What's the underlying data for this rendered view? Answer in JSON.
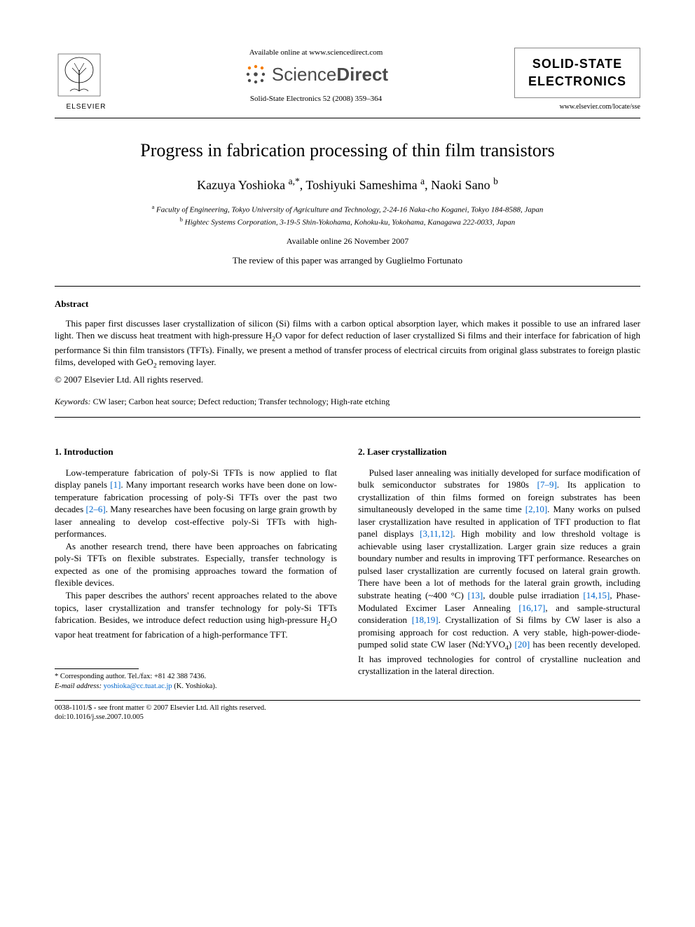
{
  "header": {
    "publisher_logo_text": "ELSEVIER",
    "available_text": "Available online at www.sciencedirect.com",
    "sd_logo_regular": "Science",
    "sd_logo_bold": "Direct",
    "citation": "Solid-State Electronics 52 (2008) 359–364",
    "journal_title_line1": "SOLID-STATE",
    "journal_title_line2": "ELECTRONICS",
    "journal_url": "www.elsevier.com/locate/sse"
  },
  "article": {
    "title": "Progress in fabrication processing of thin film transistors",
    "authors_html": "Kazuya Yoshioka <sup>a,*</sup>, Toshiyuki Sameshima <sup>a</sup>, Naoki Sano <sup>b</sup>",
    "affiliations": [
      "<sup>a</sup> Faculty of Engineering, Tokyo University of Agriculture and Technology, 2-24-16 Naka-cho Koganei, Tokyo 184-8588, Japan",
      "<sup>b</sup> Hightec Systems Corporation, 3-19-5 Shin-Yokohama, Kohoku-ku, Yokohama, Kanagawa 222-0033, Japan"
    ],
    "online_date": "Available online 26 November 2007",
    "review_note": "The review of this paper was arranged by Guglielmo Fortunato"
  },
  "abstract": {
    "heading": "Abstract",
    "body": "This paper first discusses laser crystallization of silicon (Si) films with a carbon optical absorption layer, which makes it possible to use an infrared laser light. Then we discuss heat treatment with high-pressure H<sub>2</sub>O vapor for defect reduction of laser crystallized Si films and their interface for fabrication of high performance Si thin film transistors (TFTs). Finally, we present a method of transfer process of electrical circuits from original glass substrates to foreign plastic films, developed with GeO<sub>2</sub> removing layer.",
    "copyright": "© 2007 Elsevier Ltd. All rights reserved.",
    "keywords_label": "Keywords:",
    "keywords_value": " CW laser; Carbon heat source; Defect reduction; Transfer technology; High-rate etching"
  },
  "sections": {
    "left": {
      "heading": "1. Introduction",
      "paragraphs": [
        "Low-temperature fabrication of poly-Si TFTs is now applied to flat display panels <span class=\"ref\">[1]</span>. Many important research works have been done on low-temperature fabrication processing of poly-Si TFTs over the past two decades <span class=\"ref\">[2–6]</span>. Many researches have been focusing on large grain growth by laser annealing to develop cost-effective poly-Si TFTs with high-performances.",
        "As another research trend, there have been approaches on fabricating poly-Si TFTs on flexible substrates. Especially, transfer technology is expected as one of the promising approaches toward the formation of flexible devices.",
        "This paper describes the authors' recent approaches related to the above topics, laser crystallization and transfer technology for poly-Si TFTs fabrication. Besides, we introduce defect reduction using high-pressure H<sub>2</sub>O vapor heat treatment for fabrication of a high-performance TFT."
      ]
    },
    "right": {
      "heading": "2. Laser crystallization",
      "paragraphs": [
        "Pulsed laser annealing was initially developed for surface modification of bulk semiconductor substrates for 1980s <span class=\"ref\">[7–9]</span>. Its application to crystallization of thin films formed on foreign substrates has been simultaneously developed in the same time <span class=\"ref\">[2,10]</span>. Many works on pulsed laser crystallization have resulted in application of TFT production to flat panel displays <span class=\"ref\">[3,11,12]</span>. High mobility and low threshold voltage is achievable using laser crystallization. Larger grain size reduces a grain boundary number and results in improving TFT performance. Researches on pulsed laser crystallization are currently focused on lateral grain growth. There have been a lot of methods for the lateral grain growth, including substrate heating (~400 °C) <span class=\"ref\">[13]</span>, double pulse irradiation <span class=\"ref\">[14,15]</span>, Phase-Modulated Excimer Laser Annealing <span class=\"ref\">[16,17]</span>, and sample-structural consideration <span class=\"ref\">[18,19]</span>. Crystallization of Si films by CW laser is also a promising approach for cost reduction. A very stable, high-power-diode-pumped solid state CW laser (Nd:YVO<sub>4</sub>) <span class=\"ref\">[20]</span> has been recently developed. It has improved technologies for control of crystalline nucleation and crystallization in the lateral direction."
      ]
    }
  },
  "footnote": {
    "corresponding": "* Corresponding author. Tel./fax: +81 42 388 7436.",
    "email_label": "E-mail address: ",
    "email": "yoshioka@cc.tuat.ac.jp",
    "email_suffix": " (K. Yoshioka)."
  },
  "footer": {
    "line1": "0038-1101/$ - see front matter © 2007 Elsevier Ltd. All rights reserved.",
    "line2": "doi:10.1016/j.sse.2007.10.005"
  },
  "colors": {
    "text": "#000000",
    "link": "#0066cc",
    "background": "#ffffff",
    "journal_border": "#888888",
    "sd_gray": "#4a4a4a",
    "sd_orange": "#f57c00"
  },
  "typography": {
    "body_font": "Georgia, 'Times New Roman', serif",
    "title_fontsize": 26,
    "authors_fontsize": 18,
    "body_fontsize": 13,
    "affil_fontsize": 11,
    "footnote_fontsize": 10.5
  }
}
